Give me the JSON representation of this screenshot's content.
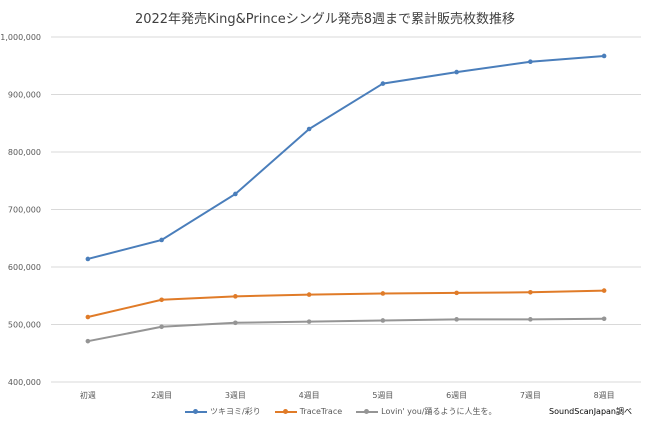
{
  "chart_data": {
    "type": "line",
    "title": "2022年発売King&Princeシングル発売8週まで累計販売枚数推移",
    "categories": [
      "初週",
      "2週目",
      "3週目",
      "4週目",
      "5週目",
      "6週目",
      "7週目",
      "8週目"
    ],
    "ylim": [
      400000,
      1000000
    ],
    "yticks": [
      "400,000",
      "500,000",
      "600,000",
      "700,000",
      "800,000",
      "900,000",
      "1,000,000"
    ],
    "ytick_values": [
      400000,
      500000,
      600000,
      700000,
      800000,
      900000,
      1000000
    ],
    "grid": true,
    "legend": "bottom",
    "series": [
      {
        "name": "ツキヨミ/彩り",
        "color": "#4A7EBB",
        "values": [
          614000,
          647000,
          727000,
          840000,
          919000,
          939000,
          957000,
          967000
        ]
      },
      {
        "name": "TraceTrace",
        "color": "#E07B28",
        "values": [
          513000,
          543000,
          549000,
          552000,
          554000,
          555000,
          556000,
          559000
        ]
      },
      {
        "name": "Lovin' you/踊るように人生を。",
        "color": "#959595",
        "values": [
          471000,
          496000,
          503000,
          505000,
          507000,
          509000,
          509000,
          510000
        ]
      }
    ],
    "source": "SoundScanJapan調べ"
  }
}
